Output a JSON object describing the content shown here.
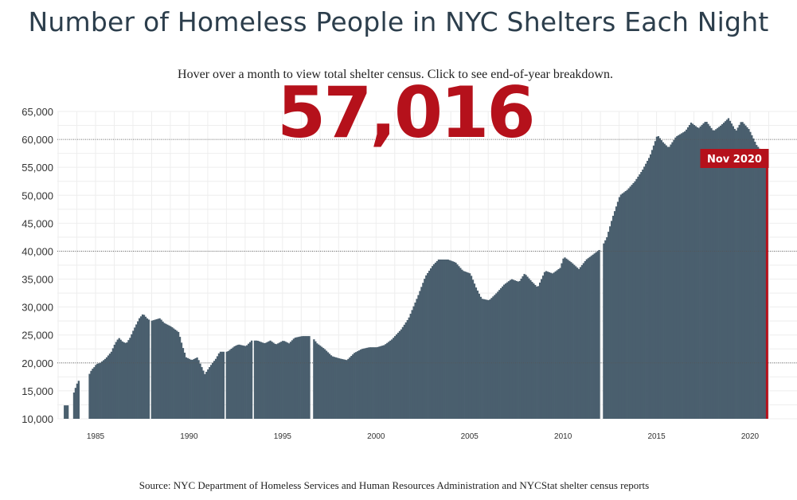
{
  "title": "Number of Homeless People in NYC Shelters Each Night",
  "subtitle": "Hover over a month to view total shelter census. Click to see end-of-year breakdown.",
  "highlight": {
    "value_label": "57,016",
    "month_label": "Nov 2020",
    "value": 57016
  },
  "source": "Source: NYC Department of Homeless Services and Human Resources Administration and NYCStat shelter census reports",
  "colors": {
    "bar": "#4a5f6e",
    "highlight": "#b5111b",
    "grid": "#eeeeee",
    "major_grid": "#555555"
  },
  "chart_data": {
    "type": "bar",
    "title": "Number of Homeless People in NYC Shelters Each Night",
    "xlabel": "",
    "ylabel": "",
    "ylim": [
      10000,
      65000
    ],
    "y_ticks": [
      "10,000",
      "15,000",
      "20,000",
      "25,000",
      "30,000",
      "35,000",
      "40,000",
      "45,000",
      "50,000",
      "55,000",
      "60,000",
      "65,000"
    ],
    "y_tick_values": [
      10000,
      15000,
      20000,
      25000,
      30000,
      35000,
      40000,
      45000,
      50000,
      55000,
      60000,
      65000
    ],
    "x_ticks": [
      "1985",
      "1990",
      "1995",
      "2000",
      "2005",
      "2010",
      "2015",
      "2020"
    ],
    "x_tick_values": [
      1985,
      1990,
      1995,
      2000,
      2005,
      2010,
      2015,
      2020
    ],
    "x_range": [
      1983,
      2021
    ],
    "gaps": [
      1987.9,
      1991.9,
      1993.4,
      1996.5,
      2012.0
    ],
    "grid": true,
    "highlight": {
      "x": 2020.83,
      "value": 57016,
      "label": "Nov 2020"
    },
    "series": [
      {
        "values_keypoints": [
          [
            1983.3,
            12400
          ],
          [
            1983.5,
            12400
          ],
          [
            1983.6,
            null
          ],
          [
            1983.75,
            14200
          ],
          [
            1983.85,
            15200
          ],
          [
            1983.95,
            16200
          ],
          [
            1984.05,
            16800
          ],
          [
            1984.15,
            null
          ],
          [
            1984.55,
            17500
          ],
          [
            1984.75,
            18800
          ],
          [
            1984.9,
            19300
          ],
          [
            1985.0,
            19800
          ],
          [
            1985.2,
            20000
          ],
          [
            1985.5,
            20800
          ],
          [
            1985.8,
            22000
          ],
          [
            1986.0,
            23500
          ],
          [
            1986.2,
            24500
          ],
          [
            1986.4,
            23800
          ],
          [
            1986.6,
            23500
          ],
          [
            1986.8,
            24500
          ],
          [
            1987.0,
            26000
          ],
          [
            1987.3,
            28000
          ],
          [
            1987.5,
            28800
          ],
          [
            1987.7,
            28000
          ],
          [
            1987.9,
            27500
          ],
          [
            1988.2,
            27800
          ],
          [
            1988.4,
            28000
          ],
          [
            1988.6,
            27200
          ],
          [
            1989.0,
            26500
          ],
          [
            1989.4,
            25500
          ],
          [
            1989.6,
            23000
          ],
          [
            1989.8,
            21000
          ],
          [
            1990.1,
            20500
          ],
          [
            1990.4,
            21000
          ],
          [
            1990.6,
            19500
          ],
          [
            1990.8,
            18000
          ],
          [
            1991.1,
            19500
          ],
          [
            1991.4,
            20800
          ],
          [
            1991.6,
            22000
          ],
          [
            1992.0,
            22000
          ],
          [
            1992.4,
            23000
          ],
          [
            1992.6,
            23300
          ],
          [
            1993.0,
            23000
          ],
          [
            1993.3,
            24000
          ],
          [
            1993.6,
            24000
          ],
          [
            1994.0,
            23500
          ],
          [
            1994.3,
            24000
          ],
          [
            1994.6,
            23300
          ],
          [
            1995.0,
            24000
          ],
          [
            1995.3,
            23500
          ],
          [
            1995.6,
            24500
          ],
          [
            1996.0,
            24800
          ],
          [
            1996.5,
            24800
          ],
          [
            1996.8,
            23500
          ],
          [
            1997.2,
            22500
          ],
          [
            1997.6,
            21200
          ],
          [
            1998.0,
            20800
          ],
          [
            1998.4,
            20500
          ],
          [
            1998.8,
            21800
          ],
          [
            1999.2,
            22500
          ],
          [
            1999.6,
            22800
          ],
          [
            2000.0,
            22800
          ],
          [
            2000.4,
            23200
          ],
          [
            2000.8,
            24200
          ],
          [
            2001.3,
            26000
          ],
          [
            2001.7,
            28000
          ],
          [
            2002.2,
            32000
          ],
          [
            2002.6,
            35500
          ],
          [
            2003.0,
            37500
          ],
          [
            2003.3,
            38500
          ],
          [
            2003.8,
            38500
          ],
          [
            2004.2,
            38000
          ],
          [
            2004.6,
            36500
          ],
          [
            2005.0,
            36000
          ],
          [
            2005.3,
            33500
          ],
          [
            2005.6,
            31500
          ],
          [
            2006.0,
            31200
          ],
          [
            2006.4,
            32500
          ],
          [
            2006.8,
            34000
          ],
          [
            2007.2,
            35000
          ],
          [
            2007.6,
            34500
          ],
          [
            2007.9,
            36000
          ],
          [
            2008.3,
            34500
          ],
          [
            2008.6,
            33500
          ],
          [
            2009.0,
            36500
          ],
          [
            2009.4,
            36000
          ],
          [
            2009.8,
            37000
          ],
          [
            2010.0,
            39000
          ],
          [
            2010.4,
            38000
          ],
          [
            2010.8,
            36800
          ],
          [
            2011.2,
            38500
          ],
          [
            2011.6,
            39500
          ],
          [
            2012.0,
            40500
          ],
          [
            2012.3,
            42500
          ],
          [
            2012.6,
            46000
          ],
          [
            2013.0,
            50000
          ],
          [
            2013.4,
            51000
          ],
          [
            2013.8,
            52500
          ],
          [
            2014.2,
            54500
          ],
          [
            2014.6,
            57000
          ],
          [
            2015.0,
            60800
          ],
          [
            2015.3,
            59500
          ],
          [
            2015.6,
            58500
          ],
          [
            2016.0,
            60500
          ],
          [
            2016.5,
            61500
          ],
          [
            2016.8,
            63000
          ],
          [
            2017.2,
            62000
          ],
          [
            2017.6,
            63300
          ],
          [
            2018.0,
            61500
          ],
          [
            2018.4,
            62500
          ],
          [
            2018.8,
            63800
          ],
          [
            2019.2,
            61500
          ],
          [
            2019.5,
            63300
          ],
          [
            2019.9,
            61800
          ],
          [
            2020.3,
            59000
          ],
          [
            2020.6,
            57800
          ],
          [
            2020.83,
            57016
          ]
        ]
      }
    ]
  }
}
